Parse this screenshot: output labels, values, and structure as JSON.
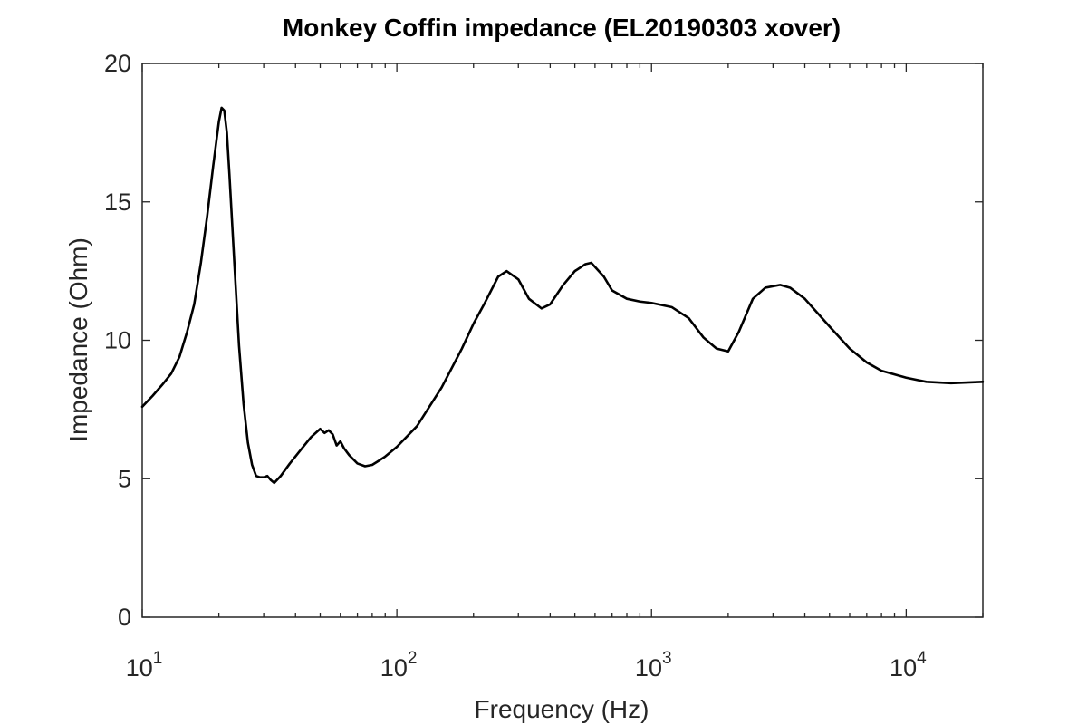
{
  "chart_data": {
    "type": "line",
    "title": "Monkey Coffin impedance (EL20190303 xover)",
    "xlabel": "Frequency (Hz)",
    "ylabel": "Impedance (Ohm)",
    "xscale": "log",
    "xlim": [
      10,
      20000
    ],
    "ylim": [
      0,
      20
    ],
    "grid": false,
    "legend": "none",
    "x_ticks": [
      {
        "base": "10",
        "exp": "1",
        "value": 10
      },
      {
        "base": "10",
        "exp": "2",
        "value": 100
      },
      {
        "base": "10",
        "exp": "3",
        "value": 1000
      },
      {
        "base": "10",
        "exp": "4",
        "value": 10000
      }
    ],
    "y_ticks": [
      "0",
      "5",
      "10",
      "15",
      "20"
    ],
    "y_tick_values": [
      0,
      5,
      10,
      15,
      20
    ],
    "series": [
      {
        "color": "#000000",
        "x": [
          10,
          11,
          12,
          13,
          14,
          15,
          16,
          17,
          18,
          19,
          20,
          20.5,
          21,
          21.5,
          22,
          23,
          24,
          25,
          26,
          27,
          28,
          29,
          30,
          31,
          32,
          33,
          35,
          38,
          42,
          46,
          50,
          52,
          54,
          56,
          58,
          60,
          62,
          65,
          70,
          75,
          80,
          85,
          90,
          100,
          120,
          150,
          180,
          200,
          220,
          250,
          270,
          300,
          330,
          370,
          400,
          450,
          500,
          550,
          580,
          650,
          700,
          800,
          900,
          1000,
          1200,
          1400,
          1600,
          1800,
          2000,
          2200,
          2500,
          2800,
          3200,
          3500,
          4000,
          5000,
          6000,
          7000,
          8000,
          10000,
          12000,
          15000,
          20000
        ],
        "y": [
          7.6,
          8.0,
          8.4,
          8.8,
          9.4,
          10.3,
          11.3,
          12.8,
          14.5,
          16.3,
          17.9,
          18.4,
          18.3,
          17.5,
          16.0,
          12.8,
          9.8,
          7.7,
          6.3,
          5.5,
          5.1,
          5.05,
          5.05,
          5.1,
          4.95,
          4.85,
          5.1,
          5.55,
          6.05,
          6.5,
          6.8,
          6.65,
          6.75,
          6.6,
          6.2,
          6.35,
          6.1,
          5.85,
          5.55,
          5.45,
          5.5,
          5.65,
          5.8,
          6.15,
          6.9,
          8.3,
          9.7,
          10.6,
          11.3,
          12.3,
          12.5,
          12.2,
          11.5,
          11.15,
          11.3,
          12.0,
          12.5,
          12.75,
          12.8,
          12.3,
          11.8,
          11.5,
          11.4,
          11.35,
          11.2,
          10.8,
          10.1,
          9.7,
          9.6,
          10.3,
          11.5,
          11.9,
          12.0,
          11.9,
          11.5,
          10.5,
          9.7,
          9.2,
          8.9,
          8.65,
          8.5,
          8.45,
          8.5
        ]
      }
    ]
  }
}
